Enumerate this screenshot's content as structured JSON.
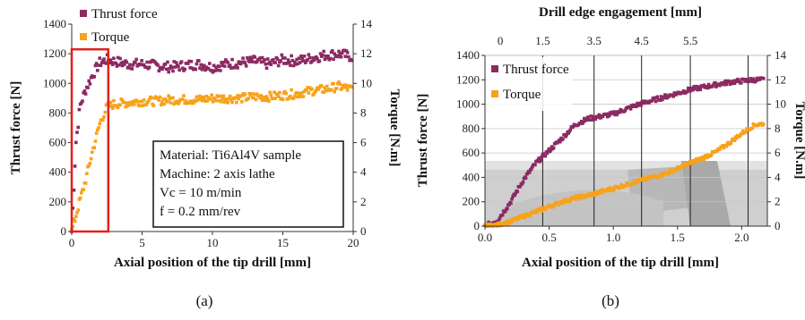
{
  "chart_data": [
    {
      "id": "a",
      "type": "scatter",
      "caption": "(a)",
      "xlabel": "Axial position of the tip drill [mm]",
      "ylabel": "Thrust force [N]",
      "y2label": "Torque [N.m]",
      "xlim": [
        0,
        20
      ],
      "ylim": [
        0,
        1400
      ],
      "y2lim": [
        0,
        14
      ],
      "xticks": [
        0,
        5,
        10,
        15,
        20
      ],
      "yticks": [
        0,
        200,
        400,
        600,
        800,
        1000,
        1200,
        1400
      ],
      "y2ticks": [
        0,
        2,
        4,
        6,
        8,
        10,
        12,
        14
      ],
      "legend_placement": "top-left",
      "annotation": [
        "Material: Ti6Al4V sample",
        "Machine: 2 axis lathe",
        "Vc = 10 m/min",
        "f = 0.2 mm/rev"
      ],
      "highlight_box": {
        "x": [
          0,
          2.6
        ],
        "y": [
          0,
          1230
        ],
        "color": "#e0201b"
      },
      "series": [
        {
          "name": "Thrust force",
          "axis": "left",
          "color": "#8b2a62",
          "x": [
            0,
            0.3,
            0.6,
            1.0,
            1.5,
            2.0,
            2.5,
            3,
            4,
            5,
            6,
            7,
            8,
            9,
            10,
            11,
            12,
            13,
            14,
            15,
            16,
            17,
            18,
            19,
            19.9
          ],
          "y": [
            0,
            600,
            850,
            960,
            1060,
            1140,
            1160,
            1150,
            1130,
            1130,
            1120,
            1110,
            1120,
            1130,
            1110,
            1130,
            1140,
            1150,
            1130,
            1160,
            1150,
            1170,
            1190,
            1200,
            1180
          ],
          "noise": 35
        },
        {
          "name": "Torque",
          "axis": "right",
          "color": "#f7a21b",
          "x": [
            0,
            0.5,
            1.0,
            1.5,
            2.0,
            2.5,
            3,
            4,
            5,
            6,
            7,
            8,
            9,
            10,
            11,
            12,
            13,
            14,
            15,
            16,
            17,
            18,
            19,
            19.9
          ],
          "y": [
            0,
            1.8,
            3.5,
            5.5,
            7.3,
            8.4,
            8.6,
            8.7,
            8.8,
            8.8,
            8.9,
            8.9,
            8.9,
            9.0,
            9.0,
            9.0,
            9.1,
            9.1,
            9.2,
            9.3,
            9.5,
            9.6,
            9.8,
            9.6
          ],
          "noise": 0.3
        }
      ]
    },
    {
      "id": "b",
      "type": "scatter",
      "caption": "(b)",
      "xlabel": "Axial position of the tip drill [mm]",
      "ylabel": "Thrust force [N]",
      "y2label": "Torque [N.m]",
      "x2label": "Drill edge engagement [mm]",
      "xlim": [
        0,
        2.2
      ],
      "ylim": [
        0,
        1400
      ],
      "y2lim": [
        0,
        14
      ],
      "xticks": [
        0.0,
        0.5,
        1.0,
        1.5,
        2.0
      ],
      "xtick_labels": [
        "0.0",
        "0.5",
        "1.0",
        "1.5",
        "2.0"
      ],
      "yticks": [
        0,
        200,
        400,
        600,
        800,
        1000,
        1200,
        1400
      ],
      "y2ticks": [
        0,
        2,
        4,
        6,
        8,
        10,
        12,
        14
      ],
      "x2ticks": [
        {
          "x": 0.12,
          "label": "0"
        },
        {
          "x": 0.45,
          "label": "1.5"
        },
        {
          "x": 0.85,
          "label": "3.5"
        },
        {
          "x": 1.22,
          "label": "4.5"
        },
        {
          "x": 1.6,
          "label": "5.5"
        }
      ],
      "vlines": [
        0.45,
        0.85,
        1.22,
        1.6,
        2.05
      ],
      "grid": true,
      "legend_placement": "top-left",
      "series": [
        {
          "name": "Thrust force",
          "axis": "left",
          "color": "#8b2a62",
          "x": [
            0,
            0.1,
            0.2,
            0.3,
            0.4,
            0.5,
            0.6,
            0.7,
            0.8,
            0.9,
            1.0,
            1.1,
            1.2,
            1.3,
            1.4,
            1.5,
            1.6,
            1.7,
            1.8,
            1.9,
            2.0,
            2.1,
            2.17
          ],
          "y": [
            0,
            50,
            200,
            380,
            520,
            620,
            720,
            830,
            880,
            900,
            920,
            960,
            1000,
            1030,
            1060,
            1090,
            1120,
            1140,
            1160,
            1180,
            1190,
            1200,
            1200
          ],
          "noise": 18
        },
        {
          "name": "Torque",
          "axis": "right",
          "color": "#f7a21b",
          "x": [
            0,
            0.1,
            0.2,
            0.3,
            0.4,
            0.5,
            0.6,
            0.7,
            0.8,
            0.9,
            1.0,
            1.1,
            1.2,
            1.3,
            1.4,
            1.5,
            1.6,
            1.7,
            1.8,
            1.9,
            2.0,
            2.1,
            2.17
          ],
          "y": [
            0,
            0.1,
            0.4,
            0.8,
            1.2,
            1.6,
            2.0,
            2.3,
            2.5,
            2.8,
            3.1,
            3.4,
            3.7,
            4.0,
            4.3,
            4.7,
            5.2,
            5.6,
            6.1,
            6.8,
            7.6,
            8.3,
            8.4
          ],
          "noise": 0.15
        }
      ]
    }
  ]
}
